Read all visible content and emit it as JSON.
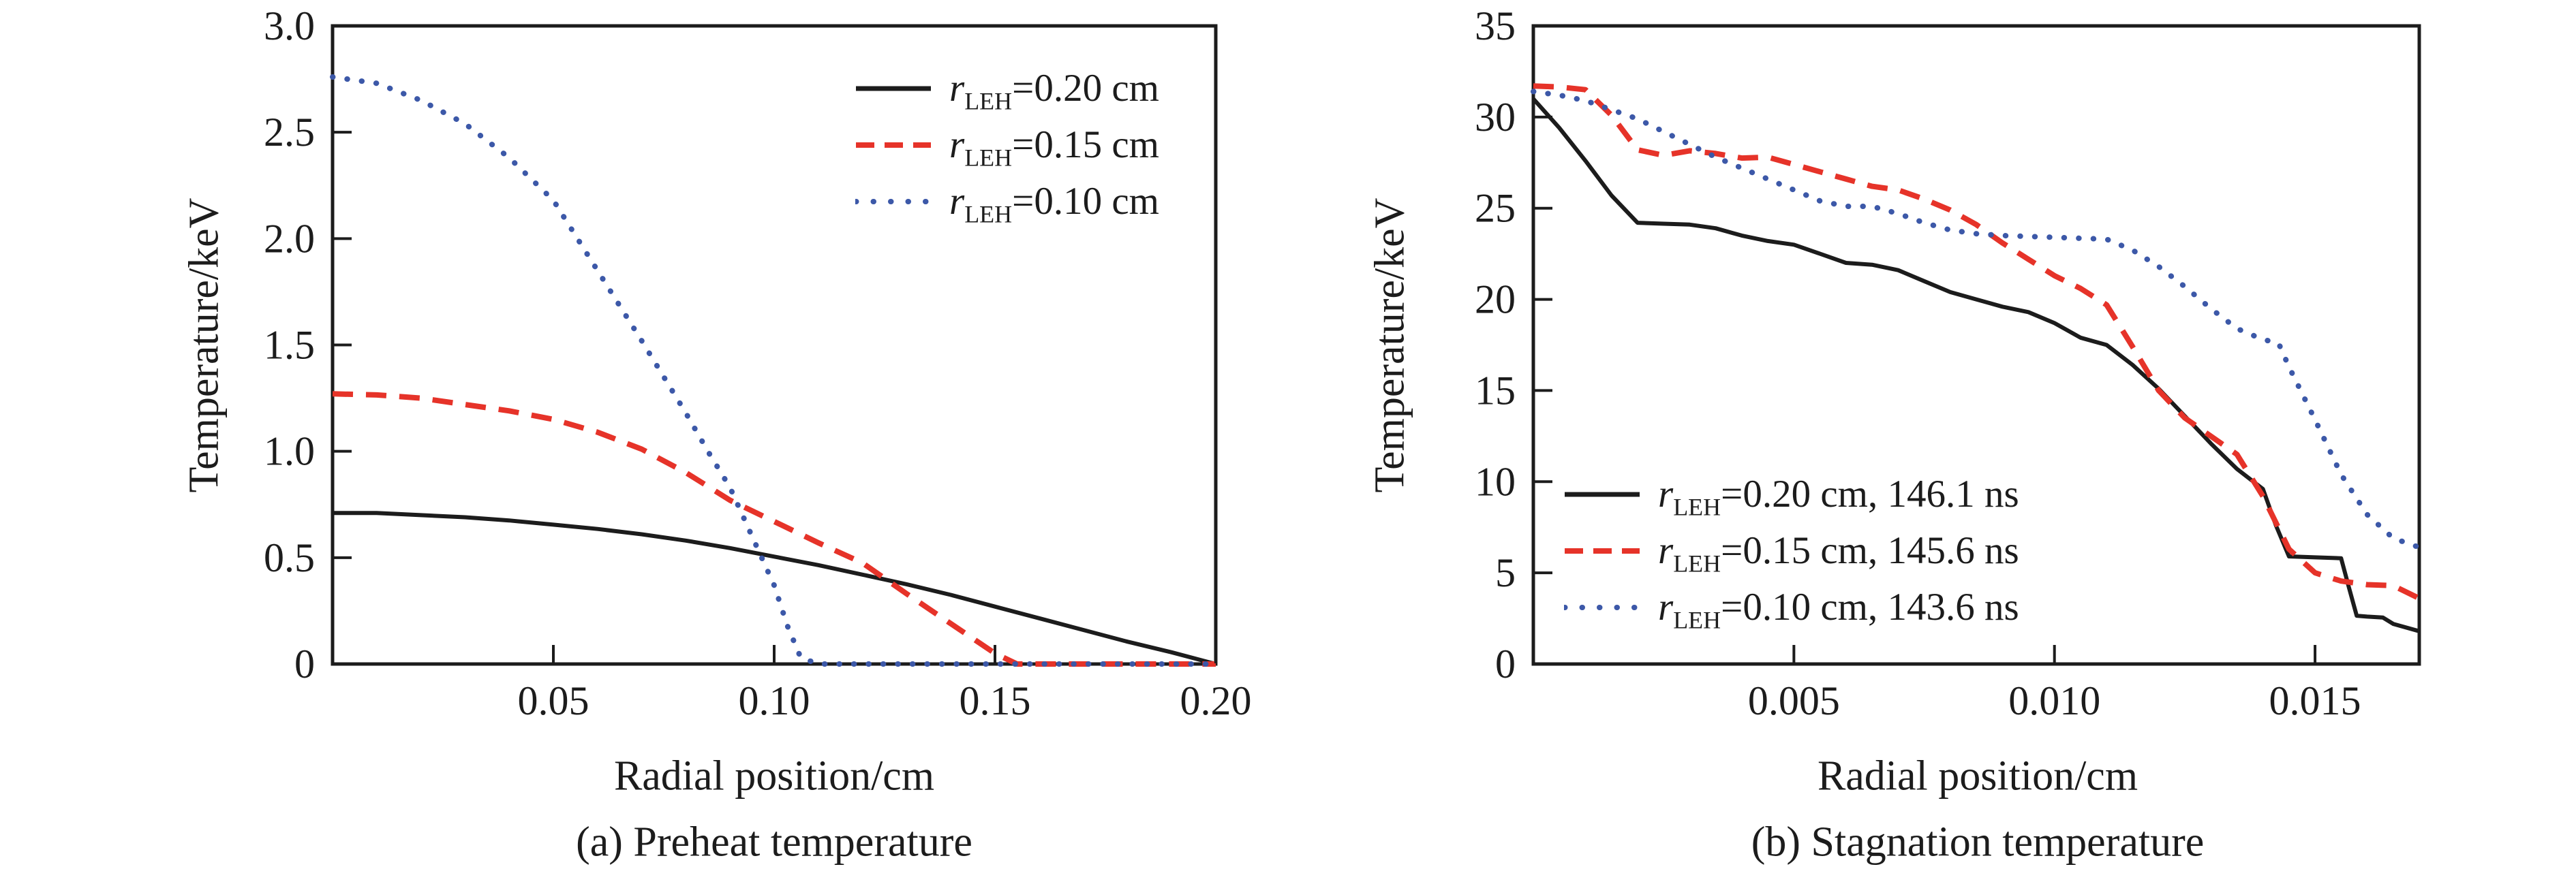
{
  "chart_data": [
    {
      "id": "a",
      "type": "line",
      "caption": "(a) Preheat temperature",
      "xlabel": "Radial position/cm",
      "ylabel": "Temperature/keV",
      "xlim": [
        0,
        0.2
      ],
      "ylim": [
        0,
        3.0
      ],
      "grid": false,
      "legend_position": "upper right",
      "frame_color": "#1c1c1c",
      "x_ticks": [
        {
          "v": 0.05,
          "label": "0.05"
        },
        {
          "v": 0.1,
          "label": "0.10"
        },
        {
          "v": 0.15,
          "label": "0.15"
        },
        {
          "v": 0.2,
          "label": "0.20"
        }
      ],
      "y_ticks": [
        {
          "v": 0,
          "label": "0"
        },
        {
          "v": 0.5,
          "label": "0.5"
        },
        {
          "v": 1.0,
          "label": "1.0"
        },
        {
          "v": 1.5,
          "label": "1.5"
        },
        {
          "v": 2.0,
          "label": "2.0"
        },
        {
          "v": 2.5,
          "label": "2.5"
        },
        {
          "v": 3.0,
          "label": "3.0"
        }
      ],
      "legend": [
        {
          "var": "r",
          "sub": "LEH",
          "rest": "=0.20 cm"
        },
        {
          "var": "r",
          "sub": "LEH",
          "rest": "=0.15 cm"
        },
        {
          "var": "r",
          "sub": "LEH",
          "rest": "=0.10 cm"
        }
      ],
      "series": [
        {
          "name": "rLEH=0.20 cm",
          "style": "solid",
          "color": "#1c1c1c",
          "width": 6,
          "points": [
            [
              0,
              0.71
            ],
            [
              0.01,
              0.71
            ],
            [
              0.02,
              0.7
            ],
            [
              0.03,
              0.69
            ],
            [
              0.04,
              0.675
            ],
            [
              0.05,
              0.655
            ],
            [
              0.06,
              0.635
            ],
            [
              0.07,
              0.61
            ],
            [
              0.08,
              0.58
            ],
            [
              0.09,
              0.545
            ],
            [
              0.1,
              0.505
            ],
            [
              0.11,
              0.465
            ],
            [
              0.12,
              0.42
            ],
            [
              0.13,
              0.375
            ],
            [
              0.14,
              0.325
            ],
            [
              0.15,
              0.27
            ],
            [
              0.16,
              0.215
            ],
            [
              0.17,
              0.16
            ],
            [
              0.18,
              0.105
            ],
            [
              0.19,
              0.055
            ],
            [
              0.2,
              0.0
            ]
          ]
        },
        {
          "name": "rLEH=0.15 cm",
          "style": "dashed",
          "color": "#e63329",
          "width": 8,
          "points": [
            [
              0,
              1.27
            ],
            [
              0.01,
              1.265
            ],
            [
              0.02,
              1.25
            ],
            [
              0.03,
              1.22
            ],
            [
              0.04,
              1.19
            ],
            [
              0.05,
              1.15
            ],
            [
              0.06,
              1.09
            ],
            [
              0.07,
              1.01
            ],
            [
              0.08,
              0.9
            ],
            [
              0.09,
              0.77
            ],
            [
              0.1,
              0.67
            ],
            [
              0.11,
              0.57
            ],
            [
              0.12,
              0.475
            ],
            [
              0.13,
              0.33
            ],
            [
              0.14,
              0.19
            ],
            [
              0.15,
              0.05
            ],
            [
              0.155,
              0.0
            ],
            [
              0.16,
              0.0
            ],
            [
              0.17,
              0.0
            ],
            [
              0.18,
              0.0
            ],
            [
              0.19,
              0.0
            ],
            [
              0.2,
              0.0
            ]
          ]
        },
        {
          "name": "rLEH=0.10 cm",
          "style": "dotted",
          "color": "#3c58a8",
          "width": 8,
          "points": [
            [
              0,
              2.76
            ],
            [
              0.01,
              2.73
            ],
            [
              0.02,
              2.65
            ],
            [
              0.03,
              2.54
            ],
            [
              0.04,
              2.38
            ],
            [
              0.05,
              2.18
            ],
            [
              0.06,
              1.85
            ],
            [
              0.07,
              1.52
            ],
            [
              0.08,
              1.18
            ],
            [
              0.085,
              1.0
            ],
            [
              0.09,
              0.83
            ],
            [
              0.095,
              0.6
            ],
            [
              0.1,
              0.37
            ],
            [
              0.103,
              0.18
            ],
            [
              0.106,
              0.03
            ],
            [
              0.11,
              0.0
            ],
            [
              0.13,
              0.0
            ],
            [
              0.15,
              0.0
            ],
            [
              0.17,
              0.0
            ],
            [
              0.2,
              0.0
            ]
          ]
        }
      ]
    },
    {
      "id": "b",
      "type": "line",
      "caption": "(b) Stagnation temperature",
      "xlabel": "Radial position/cm",
      "ylabel": "Temperature/keV",
      "xlim": [
        0,
        0.017
      ],
      "ylim": [
        0,
        35
      ],
      "grid": false,
      "legend_position": "lower left",
      "frame_color": "#1c1c1c",
      "x_ticks": [
        {
          "v": 0.005,
          "label": "0.005"
        },
        {
          "v": 0.01,
          "label": "0.010"
        },
        {
          "v": 0.015,
          "label": "0.015"
        }
      ],
      "y_ticks": [
        {
          "v": 0,
          "label": "0"
        },
        {
          "v": 5,
          "label": "5"
        },
        {
          "v": 10,
          "label": "10"
        },
        {
          "v": 15,
          "label": "15"
        },
        {
          "v": 20,
          "label": "20"
        },
        {
          "v": 25,
          "label": "25"
        },
        {
          "v": 30,
          "label": "30"
        },
        {
          "v": 35,
          "label": "35"
        }
      ],
      "legend": [
        {
          "var": "r",
          "sub": "LEH",
          "rest": "=0.20 cm, 146.1 ns"
        },
        {
          "var": "r",
          "sub": "LEH",
          "rest": "=0.15 cm, 145.6 ns"
        },
        {
          "var": "r",
          "sub": "LEH",
          "rest": "=0.10 cm, 143.6 ns"
        }
      ],
      "series": [
        {
          "name": "rLEH=0.20 cm, 146.1 ns",
          "style": "solid",
          "color": "#1c1c1c",
          "width": 6,
          "points": [
            [
              0,
              31.0
            ],
            [
              0.0005,
              29.4
            ],
            [
              0.001,
              27.6
            ],
            [
              0.0015,
              25.7
            ],
            [
              0.002,
              24.2
            ],
            [
              0.0025,
              24.15
            ],
            [
              0.003,
              24.1
            ],
            [
              0.0035,
              23.9
            ],
            [
              0.004,
              23.5
            ],
            [
              0.0045,
              23.2
            ],
            [
              0.005,
              23.0
            ],
            [
              0.0055,
              22.5
            ],
            [
              0.006,
              22.0
            ],
            [
              0.0065,
              21.9
            ],
            [
              0.007,
              21.6
            ],
            [
              0.0075,
              21.0
            ],
            [
              0.008,
              20.4
            ],
            [
              0.0085,
              20.0
            ],
            [
              0.009,
              19.6
            ],
            [
              0.0095,
              19.3
            ],
            [
              0.01,
              18.7
            ],
            [
              0.0105,
              17.9
            ],
            [
              0.011,
              17.5
            ],
            [
              0.0115,
              16.4
            ],
            [
              0.012,
              15.1
            ],
            [
              0.0125,
              13.6
            ],
            [
              0.013,
              12.1
            ],
            [
              0.0135,
              10.7
            ],
            [
              0.014,
              9.6
            ],
            [
              0.01425,
              7.6
            ],
            [
              0.0145,
              5.9
            ],
            [
              0.015,
              5.85
            ],
            [
              0.0155,
              5.8
            ],
            [
              0.01565,
              4.2
            ],
            [
              0.0158,
              2.65
            ],
            [
              0.016,
              2.6
            ],
            [
              0.0163,
              2.55
            ],
            [
              0.0165,
              2.2
            ],
            [
              0.017,
              1.8
            ]
          ]
        },
        {
          "name": "rLEH=0.15 cm, 145.6 ns",
          "style": "dashed",
          "color": "#e63329",
          "width": 8,
          "points": [
            [
              0,
              31.7
            ],
            [
              0.0005,
              31.65
            ],
            [
              0.001,
              31.5
            ],
            [
              0.0015,
              30.1
            ],
            [
              0.002,
              28.2
            ],
            [
              0.0025,
              27.9
            ],
            [
              0.003,
              28.15
            ],
            [
              0.0035,
              28.0
            ],
            [
              0.004,
              27.75
            ],
            [
              0.0045,
              27.8
            ],
            [
              0.005,
              27.4
            ],
            [
              0.0055,
              27.0
            ],
            [
              0.006,
              26.6
            ],
            [
              0.0065,
              26.2
            ],
            [
              0.007,
              26.0
            ],
            [
              0.0075,
              25.5
            ],
            [
              0.008,
              24.9
            ],
            [
              0.0085,
              24.1
            ],
            [
              0.009,
              23.1
            ],
            [
              0.0095,
              22.2
            ],
            [
              0.01,
              21.3
            ],
            [
              0.0105,
              20.6
            ],
            [
              0.011,
              19.7
            ],
            [
              0.0115,
              17.4
            ],
            [
              0.012,
              15.0
            ],
            [
              0.0125,
              13.5
            ],
            [
              0.013,
              12.5
            ],
            [
              0.0135,
              11.5
            ],
            [
              0.014,
              9.2
            ],
            [
              0.0145,
              6.3
            ],
            [
              0.015,
              5.0
            ],
            [
              0.0155,
              4.55
            ],
            [
              0.016,
              4.35
            ],
            [
              0.0165,
              4.3
            ],
            [
              0.017,
              3.6
            ]
          ]
        },
        {
          "name": "rLEH=0.10 cm, 143.6 ns",
          "style": "dotted",
          "color": "#3c58a8",
          "width": 8,
          "points": [
            [
              0,
              31.4
            ],
            [
              0.0005,
              31.2
            ],
            [
              0.001,
              30.9
            ],
            [
              0.0015,
              30.4
            ],
            [
              0.002,
              29.9
            ],
            [
              0.0025,
              29.2
            ],
            [
              0.003,
              28.5
            ],
            [
              0.0035,
              27.8
            ],
            [
              0.004,
              27.2
            ],
            [
              0.0045,
              26.6
            ],
            [
              0.005,
              26.0
            ],
            [
              0.0055,
              25.4
            ],
            [
              0.006,
              25.1
            ],
            [
              0.0065,
              25.1
            ],
            [
              0.007,
              24.7
            ],
            [
              0.0075,
              24.2
            ],
            [
              0.008,
              23.8
            ],
            [
              0.0085,
              23.6
            ],
            [
              0.009,
              23.5
            ],
            [
              0.0095,
              23.45
            ],
            [
              0.01,
              23.4
            ],
            [
              0.0105,
              23.35
            ],
            [
              0.011,
              23.3
            ],
            [
              0.0115,
              22.7
            ],
            [
              0.012,
              21.8
            ],
            [
              0.0125,
              20.7
            ],
            [
              0.013,
              19.5
            ],
            [
              0.0135,
              18.4
            ],
            [
              0.014,
              17.8
            ],
            [
              0.0143,
              17.6
            ],
            [
              0.0145,
              16.3
            ],
            [
              0.015,
              13.4
            ],
            [
              0.0155,
              10.4
            ],
            [
              0.016,
              8.2
            ],
            [
              0.0165,
              6.9
            ],
            [
              0.017,
              6.4
            ]
          ]
        }
      ]
    }
  ]
}
